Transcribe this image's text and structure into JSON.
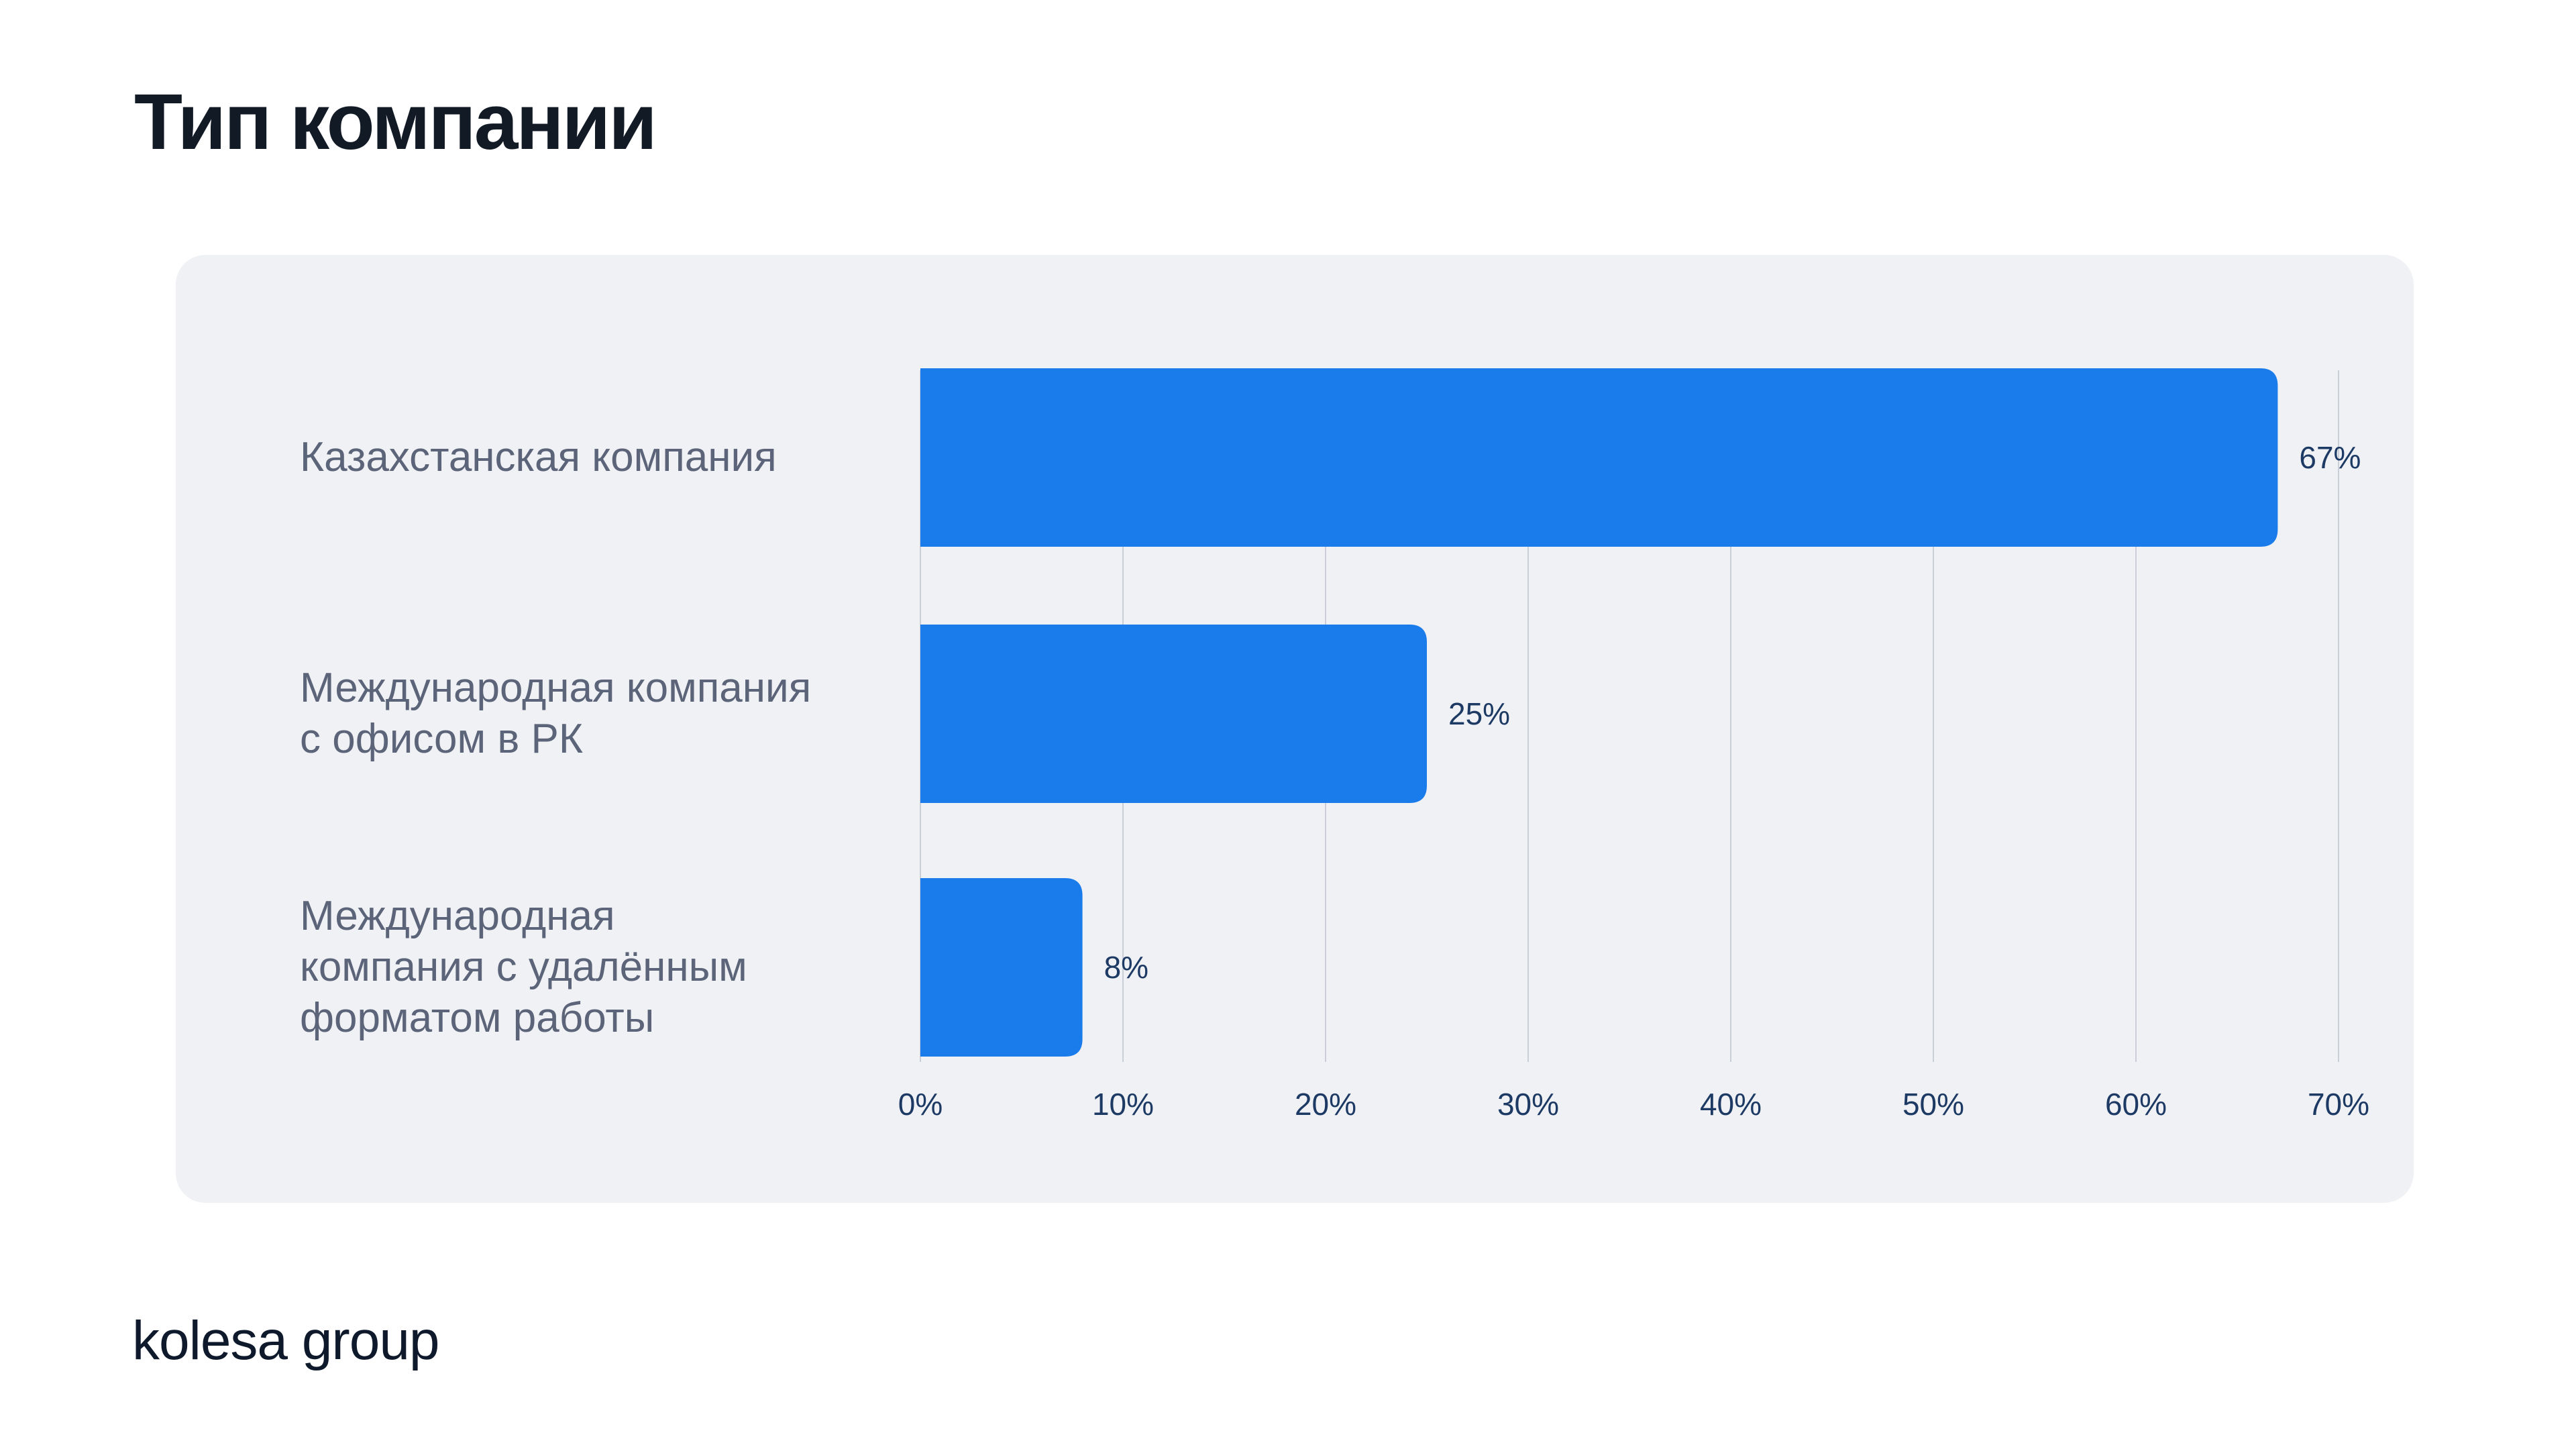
{
  "page": {
    "title": "Тип компании",
    "brand": "kolesa group"
  },
  "colors": {
    "bar": "#1a7ceb",
    "card_background": "#f0f1f5",
    "grid": "#c9ced8",
    "tick_text": "#1d3a64",
    "category_text": "#5b6478",
    "title_text": "#121a26"
  },
  "chart_data": {
    "type": "bar",
    "orientation": "horizontal",
    "categories": [
      [
        "Казахстанская компания"
      ],
      [
        "Международная компания",
        "с офисом в РК"
      ],
      [
        "Международная",
        "компания с удалённым",
        "форматом работы"
      ]
    ],
    "values": [
      67,
      25,
      8
    ],
    "value_labels": [
      "67%",
      "25%",
      "8%"
    ],
    "xlim": [
      0,
      70
    ],
    "xticks": [
      0,
      10,
      20,
      30,
      40,
      50,
      60,
      70
    ],
    "xtick_labels": [
      "0%",
      "10%",
      "20%",
      "30%",
      "40%",
      "50%",
      "60%",
      "70%"
    ],
    "grid": "vertical",
    "title": "",
    "xlabel": "",
    "ylabel": ""
  }
}
